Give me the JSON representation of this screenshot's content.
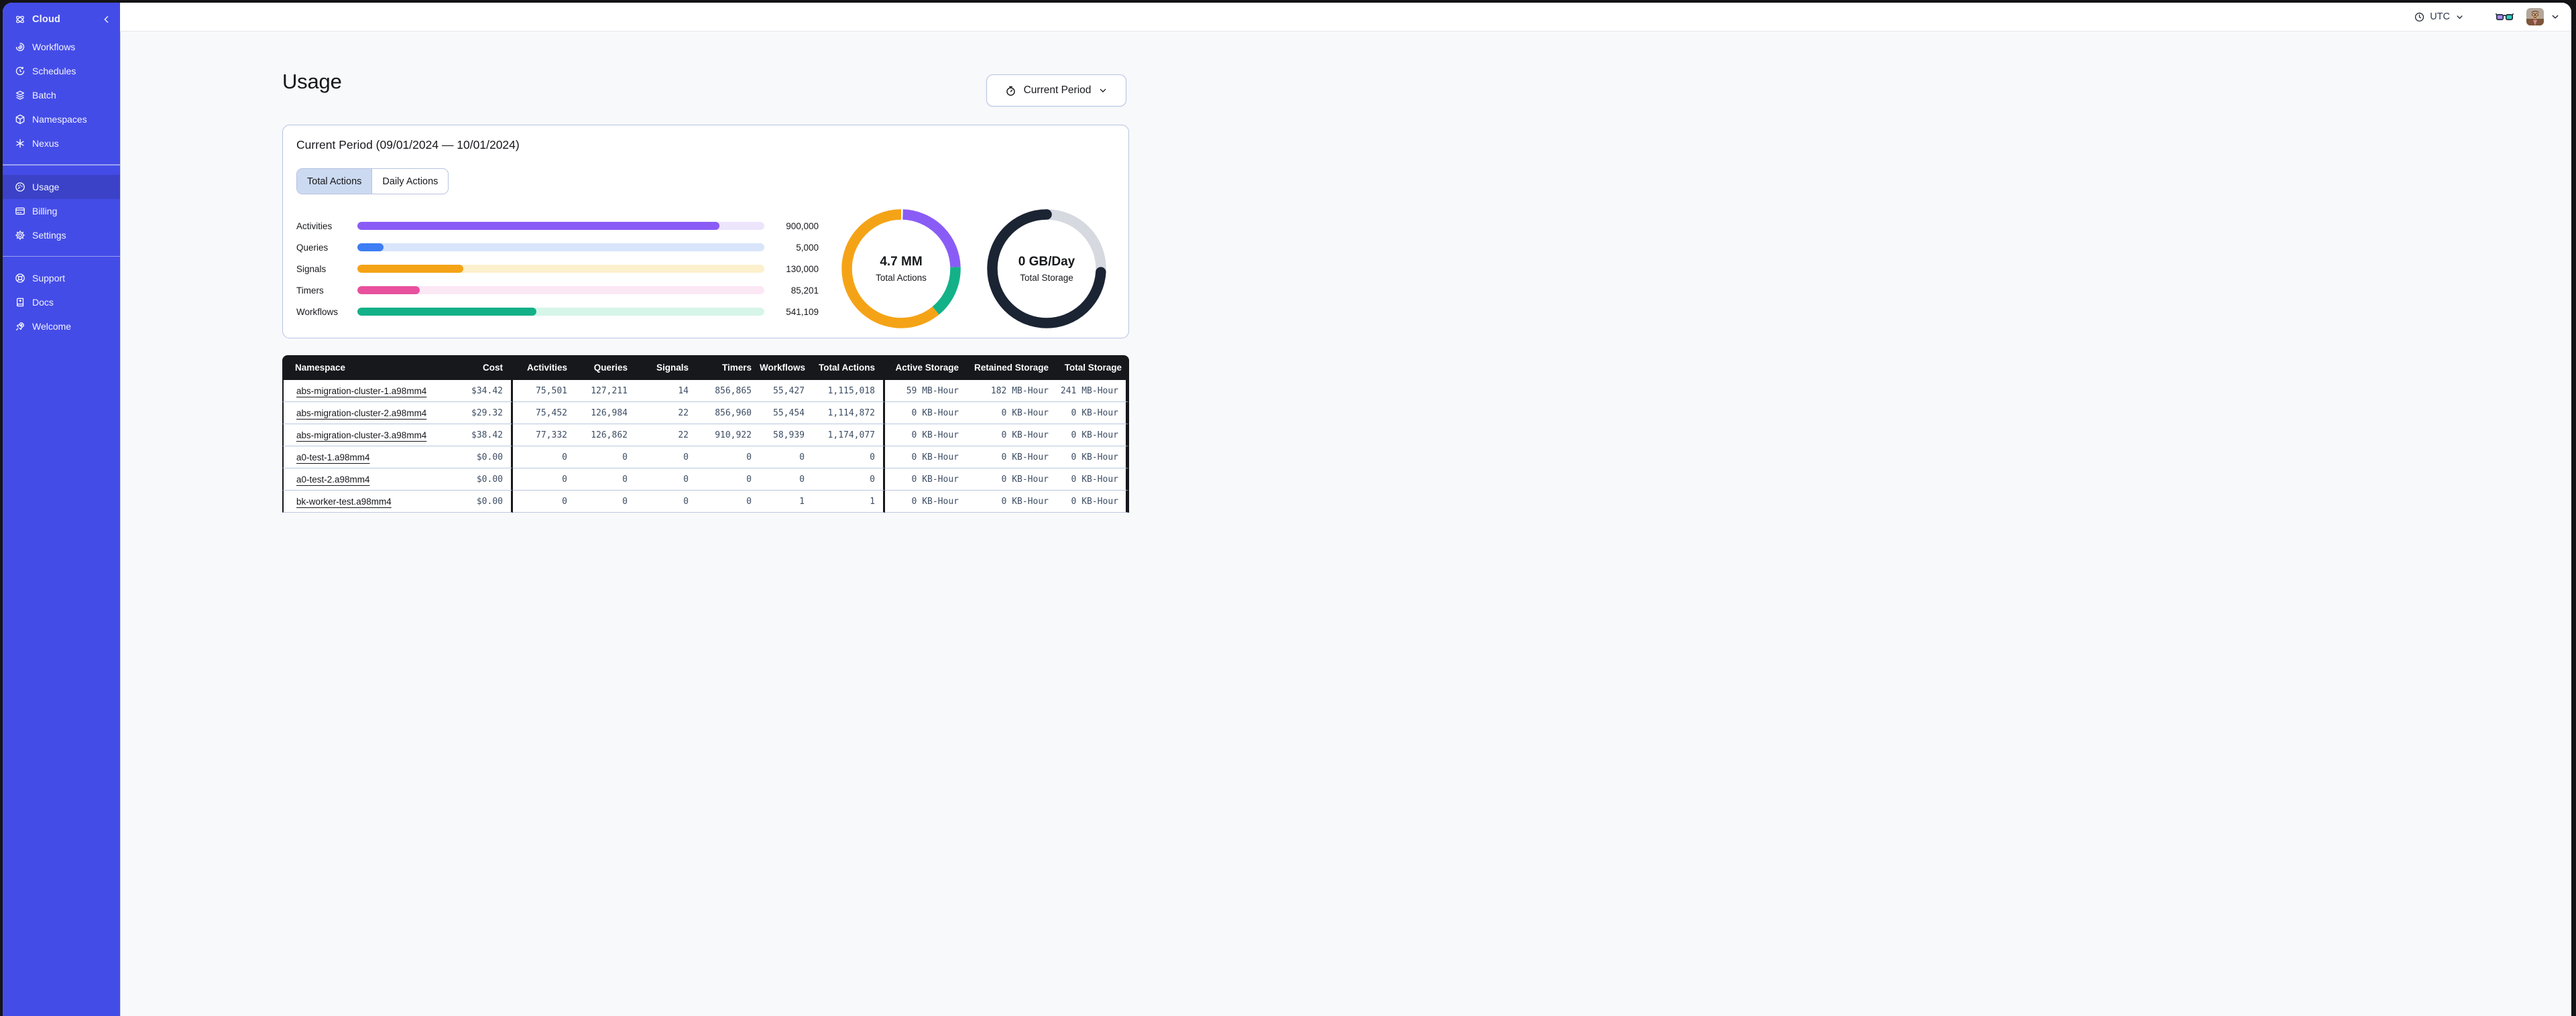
{
  "topbar": {
    "timezone": "UTC"
  },
  "sidebar": {
    "brand": "Cloud",
    "groups": [
      {
        "items": [
          {
            "label": "Workflows",
            "icon": "workflows-icon"
          },
          {
            "label": "Schedules",
            "icon": "schedules-icon"
          },
          {
            "label": "Batch",
            "icon": "batch-icon"
          },
          {
            "label": "Namespaces",
            "icon": "namespaces-icon"
          },
          {
            "label": "Nexus",
            "icon": "nexus-icon"
          }
        ]
      },
      {
        "items": [
          {
            "label": "Usage",
            "icon": "usage-icon",
            "active": true
          },
          {
            "label": "Billing",
            "icon": "billing-icon"
          },
          {
            "label": "Settings",
            "icon": "settings-icon"
          }
        ]
      },
      {
        "items": [
          {
            "label": "Support",
            "icon": "support-icon"
          },
          {
            "label": "Docs",
            "icon": "docs-icon"
          },
          {
            "label": "Welcome",
            "icon": "welcome-icon"
          }
        ]
      }
    ]
  },
  "page": {
    "title": "Usage"
  },
  "period_selector": {
    "label": "Current Period"
  },
  "usage_card": {
    "title": "Current Period (09/01/2024 — 10/01/2024)",
    "tabs": [
      {
        "label": "Total Actions",
        "active": true
      },
      {
        "label": "Daily Actions",
        "active": false
      }
    ]
  },
  "chart_data": [
    {
      "type": "bar",
      "orientation": "horizontal",
      "categories": [
        "Activities",
        "Queries",
        "Signals",
        "Timers",
        "Workflows"
      ],
      "values": [
        900000,
        5000,
        130000,
        85201,
        541109
      ],
      "value_labels": [
        "900,000",
        "5,000",
        "130,000",
        "85,201",
        "541,109"
      ],
      "fill_pct": [
        89,
        6.5,
        26,
        15.3,
        44
      ],
      "bar_colors": [
        "#8a5cf6",
        "#3e7df4",
        "#f5a316",
        "#e8519d",
        "#13b188"
      ],
      "track_colors": [
        "#ece5fc",
        "#d8e5fb",
        "#fcf0cd",
        "#fce7f5",
        "#d7f5e9"
      ]
    },
    {
      "type": "donut",
      "center_value": "4.7 MM",
      "center_label": "Total Actions",
      "start_offset_pct": 0.5,
      "segments": [
        {
          "name": "purple",
          "color": "#8a5cf6",
          "pct": 24
        },
        {
          "name": "green",
          "color": "#13b188",
          "pct": 14.5
        },
        {
          "name": "orange",
          "color": "#f5a316",
          "pct": 61.5
        }
      ]
    },
    {
      "type": "donut",
      "center_value": "0 GB/Day",
      "center_label": "Total Storage",
      "start_offset_pct": 0,
      "segments": [
        {
          "name": "gray",
          "color": "#d6d9df",
          "pct": 26
        },
        {
          "name": "navy",
          "color": "#1b2433",
          "pct": 74,
          "cap": "round"
        }
      ]
    }
  ],
  "table": {
    "columns": [
      "Namespace",
      "Cost",
      "Activities",
      "Queries",
      "Signals",
      "Timers",
      "Workflows",
      "Total Actions",
      "Active Storage",
      "Retained Storage",
      "Total Storage"
    ],
    "rows": [
      [
        "abs-migration-cluster-1.a98mm4",
        "$34.42",
        "75,501",
        "127,211",
        "14",
        "856,865",
        "55,427",
        "1,115,018",
        "59 MB-Hour",
        "182 MB-Hour",
        "241 MB-Hour"
      ],
      [
        "abs-migration-cluster-2.a98mm4",
        "$29.32",
        "75,452",
        "126,984",
        "22",
        "856,960",
        "55,454",
        "1,114,872",
        "0 KB-Hour",
        "0 KB-Hour",
        "0 KB-Hour"
      ],
      [
        "abs-migration-cluster-3.a98mm4",
        "$38.42",
        "77,332",
        "126,862",
        "22",
        "910,922",
        "58,939",
        "1,174,077",
        "0 KB-Hour",
        "0 KB-Hour",
        "0 KB-Hour"
      ],
      [
        "a0-test-1.a98mm4",
        "$0.00",
        "0",
        "0",
        "0",
        "0",
        "0",
        "0",
        "0 KB-Hour",
        "0 KB-Hour",
        "0 KB-Hour"
      ],
      [
        "a0-test-2.a98mm4",
        "$0.00",
        "0",
        "0",
        "0",
        "0",
        "0",
        "0",
        "0 KB-Hour",
        "0 KB-Hour",
        "0 KB-Hour"
      ],
      [
        "bk-worker-test.a98mm4",
        "$0.00",
        "0",
        "0",
        "0",
        "0",
        "1",
        "1",
        "0 KB-Hour",
        "0 KB-Hour",
        "0 KB-Hour"
      ]
    ]
  },
  "colors": {
    "sidebar": "#444ce7",
    "sidebar_active": "#3b42c8",
    "accent_border": "#b5c2e1",
    "tab_selected": "#ccdaf1",
    "table_header": "#17181c",
    "number_text": "#3d4d63"
  }
}
